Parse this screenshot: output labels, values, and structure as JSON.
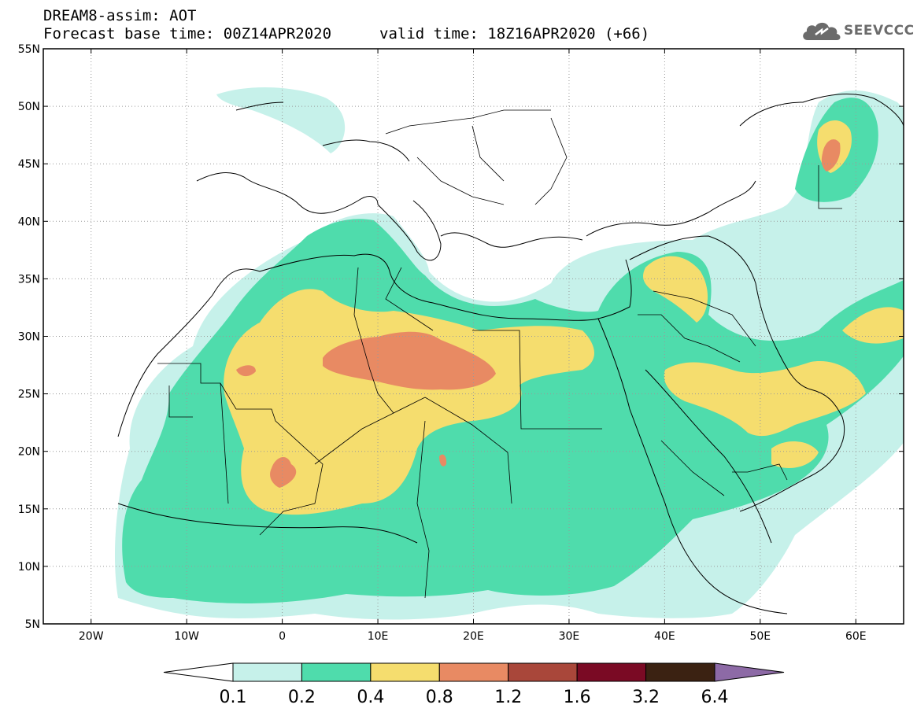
{
  "header": {
    "model_field": "DREAM8-assim: AOT",
    "base_time": "Forecast base time: 00Z14APR2020",
    "valid_time": "valid time: 18Z16APR2020 (+66)",
    "logo_text": "SEEVCCC"
  },
  "map": {
    "lon_range": [
      -25,
      65
    ],
    "lat_range": [
      5,
      55
    ],
    "lon_ticks": [
      {
        "value": -20,
        "label": "20W"
      },
      {
        "value": -10,
        "label": "10W"
      },
      {
        "value": 0,
        "label": "0"
      },
      {
        "value": 10,
        "label": "10E"
      },
      {
        "value": 20,
        "label": "20E"
      },
      {
        "value": 30,
        "label": "30E"
      },
      {
        "value": 40,
        "label": "40E"
      },
      {
        "value": 50,
        "label": "50E"
      },
      {
        "value": 60,
        "label": "60E"
      }
    ],
    "lat_ticks": [
      {
        "value": 55,
        "label": "55N"
      },
      {
        "value": 50,
        "label": "50N"
      },
      {
        "value": 45,
        "label": "45N"
      },
      {
        "value": 40,
        "label": "40N"
      },
      {
        "value": 35,
        "label": "35N"
      },
      {
        "value": 30,
        "label": "30N"
      },
      {
        "value": 25,
        "label": "25N"
      },
      {
        "value": 20,
        "label": "20N"
      },
      {
        "value": 15,
        "label": "15N"
      },
      {
        "value": 10,
        "label": "10N"
      },
      {
        "value": 5,
        "label": "5N"
      }
    ],
    "gridlines": true
  },
  "colorbar": {
    "colors": [
      "#c6f1ea",
      "#4fdcac",
      "#f5dd6e",
      "#e88a63",
      "#a9473a",
      "#7a0a24",
      "#3b2212",
      "#8d6aa6"
    ],
    "labels": [
      "0.1",
      "0.2",
      "0.4",
      "0.8",
      "1.2",
      "1.6",
      "3.2",
      "6.4"
    ]
  }
}
